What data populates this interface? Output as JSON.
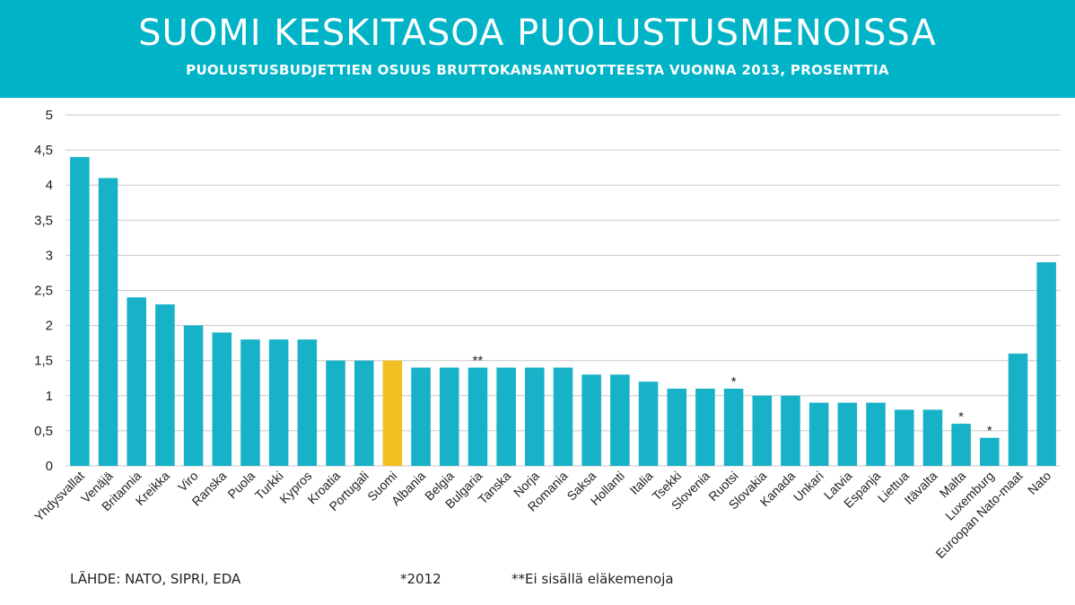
{
  "colors": {
    "header": "#00b3c7",
    "bar": "#17b2c8",
    "highlight": "#f2bf21"
  },
  "title": "SUOMI KESKITASOA PUOLUSTUSMENOISSA",
  "subtitle": "PUOLUSTUSBUDJETTIEN OSUUS BRUTTOKANSANTUOTTEESTA VUONNA 2013, PROSENTTIA",
  "footer": {
    "source": "LÄHDE: NATO, SIPRI, EDA",
    "note1": "*2012",
    "note2": "**Ei sisällä eläkemenoja"
  },
  "chart_data": {
    "type": "bar",
    "ylim": [
      0,
      5
    ],
    "yticks": [
      "0",
      "0,5",
      "1",
      "1,5",
      "2",
      "2,5",
      "3",
      "3,5",
      "4",
      "4,5",
      "5"
    ],
    "grid": true,
    "highlight": "Suomi",
    "categories": [
      "Yhdysvallat",
      "Venäjä",
      "Britannia",
      "Kreikka",
      "Viro",
      "Ranska",
      "Puola",
      "Turkki",
      "Kypros",
      "Kroatia",
      "Portugali",
      "Suomi",
      "Albania",
      "Belgia",
      "Bulgaria",
      "Tanska",
      "Norja",
      "Romania",
      "Saksa",
      "Hollanti",
      "Italia",
      "Tsekki",
      "Slovenia",
      "Ruotsi",
      "Slovakia",
      "Kanada",
      "Unkari",
      "Latvia",
      "Espanja",
      "Liettua",
      "Itävalta",
      "Malta",
      "Luxemburg",
      "Euroopan Nato-maat",
      "Nato"
    ],
    "values": [
      4.4,
      4.1,
      2.4,
      2.3,
      2.0,
      1.9,
      1.8,
      1.8,
      1.8,
      1.5,
      1.5,
      1.5,
      1.4,
      1.4,
      1.4,
      1.4,
      1.4,
      1.4,
      1.3,
      1.3,
      1.2,
      1.1,
      1.1,
      1.1,
      1.0,
      1.0,
      0.9,
      0.9,
      0.9,
      0.8,
      0.8,
      0.6,
      0.4,
      1.6,
      2.9
    ],
    "markers": [
      "",
      "",
      "",
      "",
      "",
      "",
      "",
      "",
      "",
      "",
      "",
      "",
      "",
      "",
      "**",
      "",
      "",
      "",
      "",
      "",
      "",
      "",
      "",
      "*",
      "",
      "",
      "",
      "",
      "",
      "",
      "",
      "*",
      "*",
      "",
      ""
    ]
  }
}
